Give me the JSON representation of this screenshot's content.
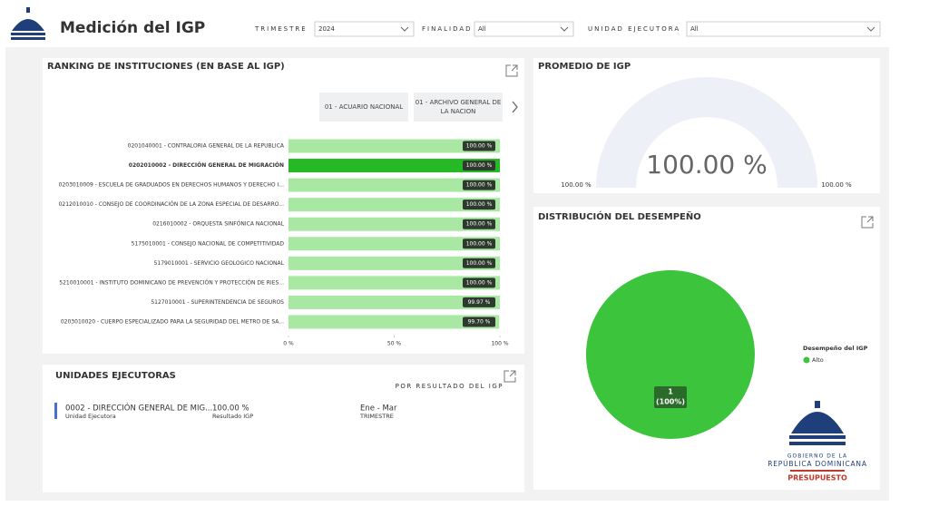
{
  "header": {
    "title": "Medición del IGP"
  },
  "filters": [
    {
      "label": "TRIMESTRE",
      "value": "2024"
    },
    {
      "label": "FINALIDAD",
      "value": "All"
    },
    {
      "label": "UNIDAD EJECUTORA",
      "value": "All"
    }
  ],
  "chart_data": [
    {
      "type": "hbar",
      "title": "RANKING DE INSTITUCIONES (EN BASE AL IGP)",
      "tabs": [
        "01 - ACUARIO NACIONAL",
        "01 - ARCHIVO GENERAL DE LA NACION"
      ],
      "categories": [
        "0201040001 - CONTRALORIA GENERAL DE LA REPUBLICA",
        "0202010002 - DIRECCIÓN GENERAL DE MIGRACIÓN",
        "0203010009 - ESCUELA DE GRADUADOS EN DERECHOS HUMANOS Y DERECHO I...",
        "0212010010 - CONSEJO DE COORDINACIÓN DE LA ZONA ESPECIAL DE DESARRO...",
        "0216010002 - ORQUESTA SINFÓNICA NACIONAL",
        "5175010001 - CONSEJO NACIONAL DE COMPETITIVIDAD",
        "5179010001 - SERVICIO GEOLOGICO NACIONAL",
        "5210010001 - INSTITUTO DOMINICANO DE PREVENCIÓN Y PROTECCIÓN DE RIES...",
        "5127010001 - SUPERINTENDENCIA DE SEGUROS",
        "0203010020 - CUERPO ESPECIALIZADO PARA LA SEGURIDAD DEL METRO DE SA..."
      ],
      "values": [
        100,
        100,
        100,
        100,
        100,
        100,
        100,
        100,
        99.97,
        99.7
      ],
      "value_labels": [
        "100.00 %",
        "100.00 %",
        "100.00 %",
        "100.00 %",
        "100.00 %",
        "100.00 %",
        "100.00 %",
        "100.00 %",
        "99.97 %",
        "99.70 %"
      ],
      "colors": [
        "#a9e8a3",
        "#25b925",
        "#a9e8a3",
        "#a9e8a3",
        "#a9e8a3",
        "#a9e8a3",
        "#a9e8a3",
        "#a9e8a3",
        "#a9e8a3",
        "#a9e8a3"
      ],
      "xlim": [
        0,
        100
      ],
      "xticks": [
        {
          "value": 0,
          "label": "0 %"
        },
        {
          "value": 50,
          "label": "50 %"
        },
        {
          "value": 100,
          "label": "100 %"
        }
      ]
    },
    {
      "type": "gauge",
      "title": "PROMEDIO DE IGP",
      "value": 100,
      "value_label": "100.00 %",
      "min": {
        "value": 100,
        "label": "100.00 %"
      },
      "max": {
        "value": 100,
        "label": "100.00 %"
      },
      "color": "#edf0f7"
    },
    {
      "type": "pie",
      "title": "DISTRIBUCIÓN DEL DESEMPEÑO",
      "legend_title": "Desempeño del IGP",
      "categories": [
        "Alto"
      ],
      "values": [
        1
      ],
      "value_labels": [
        "1"
      ],
      "percent_labels": [
        "(100%)"
      ],
      "colors": [
        "#3cc43c"
      ]
    }
  ],
  "unidades": {
    "title": "UNIDADES EJECUTORAS",
    "subtitle": "POR RESULTADO DEL IGP",
    "rows": [
      {
        "name": "0002 - DIRECCIÓN GENERAL DE MIG...",
        "name_caption": "Unidad Ejecutora",
        "result": "100.00 %",
        "result_caption": "Resultado IGP",
        "period": "Ene - Mar",
        "period_caption": "TRIMESTRE"
      }
    ]
  },
  "logo": {
    "lines": [
      "GOBIERNO DE LA",
      "REPÚBLICA DOMINICANA",
      "PRESUPUESTO"
    ]
  }
}
